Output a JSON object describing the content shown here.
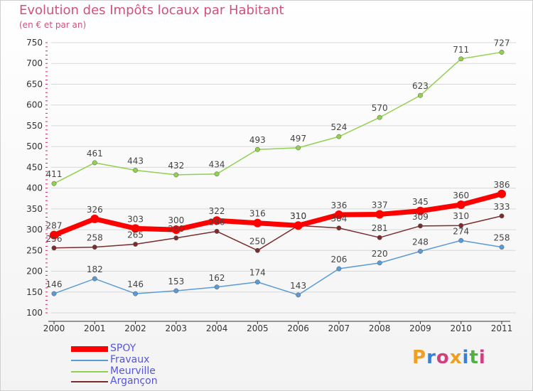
{
  "header": {
    "title": "Evolution des Impôts locaux par Habitant",
    "subtitle": "(en € et par an)"
  },
  "brand": {
    "text": "Proxiti",
    "colors": [
      "#f0a020",
      "#3a7fd0",
      "#d04080",
      "#f0a020",
      "#3a7fd0",
      "#50b040",
      "#d04080"
    ]
  },
  "colors": {
    "title": "#d05080",
    "legend_text": "#5555dd",
    "axis": "#333333",
    "grid": "#d8d8d8"
  },
  "chart_data": {
    "type": "line",
    "title": "Evolution des Impôts locaux par Habitant",
    "subtitle": "(en € et par an)",
    "xlabel": "",
    "ylabel": "",
    "x": [
      "2000",
      "2001",
      "2002",
      "2003",
      "2004",
      "2005",
      "2006",
      "2007",
      "2008",
      "2009",
      "2010",
      "2011"
    ],
    "ylim": [
      100,
      750
    ],
    "yticks": [
      100,
      150,
      200,
      250,
      300,
      350,
      400,
      450,
      500,
      550,
      600,
      650,
      700,
      750
    ],
    "grid": "horizontal",
    "legend_position": "bottom-left",
    "series": [
      {
        "name": "SPOY",
        "color": "#ff0000",
        "values": [
          287,
          326,
          303,
          300,
          322,
          316,
          310,
          336,
          337,
          345,
          360,
          386
        ],
        "emphasis": true
      },
      {
        "name": "Fravaux",
        "color": "#5b9bd5",
        "values": [
          146,
          182,
          146,
          153,
          162,
          174,
          143,
          206,
          220,
          248,
          274,
          258
        ],
        "emphasis": false
      },
      {
        "name": "Meurville",
        "color": "#92d050",
        "values": [
          411,
          461,
          443,
          432,
          434,
          493,
          497,
          524,
          570,
          623,
          711,
          727
        ],
        "emphasis": false
      },
      {
        "name": "Argançon",
        "color": "#7b2c2c",
        "values": [
          256,
          258,
          265,
          280,
          296,
          250,
          310,
          304,
          281,
          309,
          310,
          333
        ],
        "emphasis": false
      }
    ]
  }
}
